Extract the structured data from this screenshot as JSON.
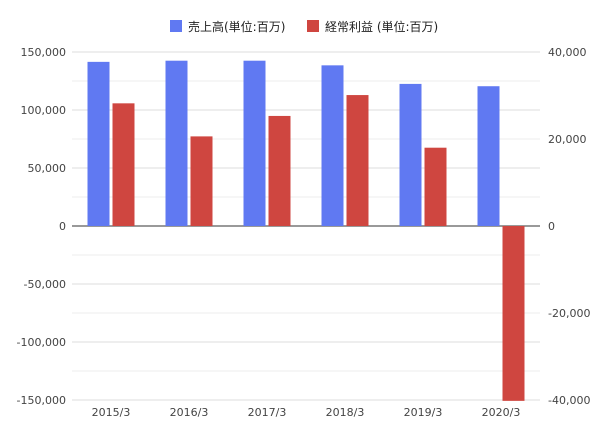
{
  "chart_data": {
    "type": "bar",
    "categories": [
      "2015/3",
      "2016/3",
      "2017/3",
      "2018/3",
      "2019/3",
      "2020/3"
    ],
    "series": [
      {
        "name": "売上高(単位:百万)",
        "axis": "left",
        "color": "#6079f2",
        "values": [
          141500,
          142500,
          142500,
          138500,
          122500,
          120500
        ]
      },
      {
        "name": "経常利益 (単位:百万)",
        "axis": "right",
        "color": "#cf4640",
        "values": [
          28200,
          20600,
          25300,
          30100,
          18000,
          -40200
        ]
      }
    ],
    "left_axis": {
      "ylim": [
        -150000,
        150000
      ],
      "ticks": [
        150000,
        100000,
        50000,
        0,
        -50000,
        -100000,
        -150000
      ],
      "tick_labels": [
        "150,000",
        "100,000",
        "50,000",
        "0",
        "-50,000",
        "-100,000",
        "-150,000"
      ]
    },
    "right_axis": {
      "ylim": [
        -40000,
        40000
      ],
      "ticks": [
        40000,
        20000,
        0,
        -20000,
        -40000
      ],
      "tick_labels": [
        "40,000",
        "20,000",
        "0",
        "-20,000",
        "-40,000"
      ]
    },
    "title": "",
    "xlabel": "",
    "ylabel": "",
    "grid": true,
    "legend_position": "top-center"
  }
}
